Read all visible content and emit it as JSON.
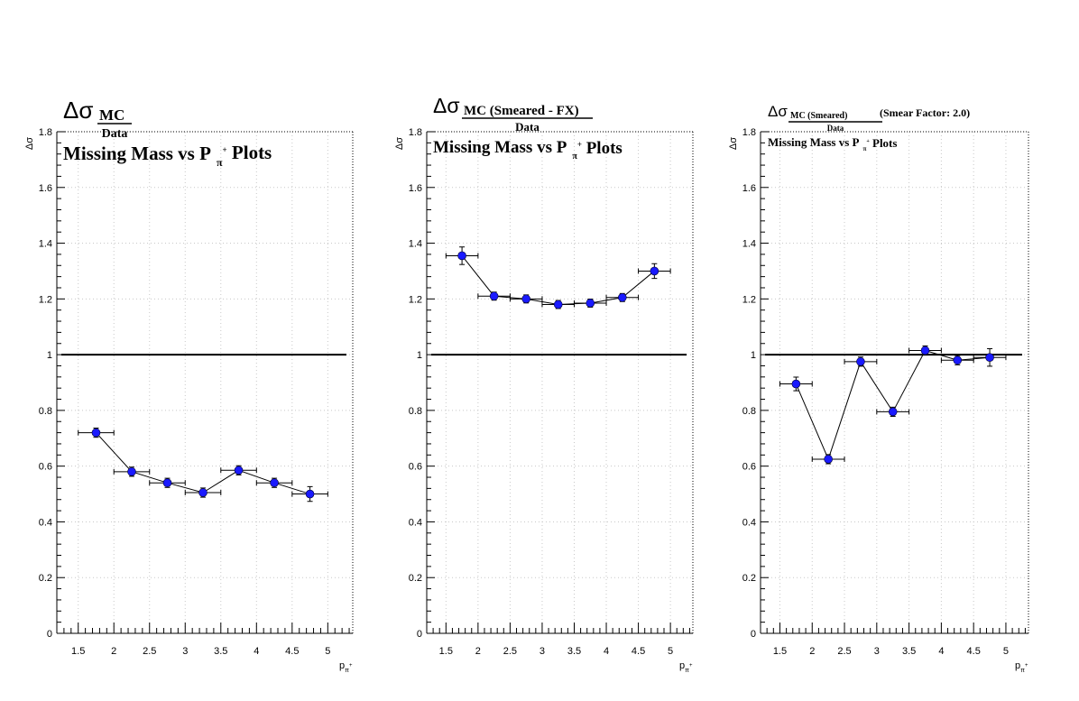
{
  "figure": {
    "colors": {
      "marker": "#1a1aff",
      "line": "#000000",
      "grid": "#c8c8c8",
      "axis": "#000000",
      "background": "#ffffff"
    }
  },
  "chart_data": [
    {
      "type": "scatter",
      "title": {
        "main": "Δσ",
        "numerator": "MC",
        "denominator": "Data",
        "line2_prefix": "Missing Mass vs P",
        "line2_sub": "π",
        "line2_sup": "+",
        "line2_suffix": "Plots"
      },
      "ylabel": "Δσ",
      "xlabel": "p",
      "xlabel_sub": "π",
      "xlabel_sup": "+",
      "xlim": [
        1.2,
        5.35
      ],
      "ylim": [
        0,
        1.8
      ],
      "x_ticks": [
        "1.5",
        "2",
        "2.5",
        "3",
        "3.5",
        "4",
        "4.5",
        "5"
      ],
      "y_ticks": [
        "0",
        "0.2",
        "0.4",
        "0.6",
        "0.8",
        "1",
        "1.2",
        "1.4",
        "1.6",
        "1.8"
      ],
      "grid": true,
      "reference_line": 1,
      "points": [
        {
          "x": 1.75,
          "y": 0.72,
          "xerr": 0.25,
          "yerr": 0.01
        },
        {
          "x": 2.25,
          "y": 0.58,
          "xerr": 0.25,
          "yerr": 0.01
        },
        {
          "x": 2.75,
          "y": 0.54,
          "xerr": 0.25,
          "yerr": 0.01
        },
        {
          "x": 3.25,
          "y": 0.505,
          "xerr": 0.25,
          "yerr": 0.01
        },
        {
          "x": 3.75,
          "y": 0.585,
          "xerr": 0.25,
          "yerr": 0.01
        },
        {
          "x": 4.25,
          "y": 0.54,
          "xerr": 0.25,
          "yerr": 0.01
        },
        {
          "x": 4.75,
          "y": 0.5,
          "xerr": 0.25,
          "yerr": 0.02
        }
      ]
    },
    {
      "type": "scatter",
      "title": {
        "main": "Δσ",
        "numerator": "MC (Smeared - FX)",
        "denominator": "Data",
        "line2_prefix": "Missing Mass vs P",
        "line2_sub": "π",
        "line2_sup": "+",
        "line2_suffix": "Plots"
      },
      "ylabel": "Δσ",
      "xlabel": "p",
      "xlabel_sub": "π",
      "xlabel_sup": "+",
      "xlim": [
        1.2,
        5.35
      ],
      "ylim": [
        0,
        1.8
      ],
      "x_ticks": [
        "1.5",
        "2",
        "2.5",
        "3",
        "3.5",
        "4",
        "4.5",
        "5"
      ],
      "y_ticks": [
        "0",
        "0.2",
        "0.4",
        "0.6",
        "0.8",
        "1",
        "1.2",
        "1.4",
        "1.6",
        "1.8"
      ],
      "grid": true,
      "reference_line": 1,
      "points": [
        {
          "x": 1.75,
          "y": 1.355,
          "xerr": 0.25,
          "yerr": 0.025
        },
        {
          "x": 2.25,
          "y": 1.21,
          "xerr": 0.25,
          "yerr": 0.008
        },
        {
          "x": 2.75,
          "y": 1.2,
          "xerr": 0.25,
          "yerr": 0.008
        },
        {
          "x": 3.25,
          "y": 1.18,
          "xerr": 0.25,
          "yerr": 0.008
        },
        {
          "x": 3.75,
          "y": 1.185,
          "xerr": 0.25,
          "yerr": 0.008
        },
        {
          "x": 4.25,
          "y": 1.205,
          "xerr": 0.25,
          "yerr": 0.008
        },
        {
          "x": 4.75,
          "y": 1.3,
          "xerr": 0.25,
          "yerr": 0.02
        }
      ]
    },
    {
      "type": "scatter",
      "title": {
        "main": "Δσ",
        "numerator": "MC (Smeared)",
        "denominator": "Data",
        "extra": "(Smear Factor: 2.0)",
        "line2_prefix": "Missing Mass vs P",
        "line2_sub": "π",
        "line2_sup": "+",
        "line2_suffix": "Plots"
      },
      "ylabel": "Δσ",
      "xlabel": "p",
      "xlabel_sub": "π",
      "xlabel_sup": "+",
      "xlim": [
        1.2,
        5.35
      ],
      "ylim": [
        0,
        1.8
      ],
      "x_ticks": [
        "1.5",
        "2",
        "2.5",
        "3",
        "3.5",
        "4",
        "4.5",
        "5"
      ],
      "y_ticks": [
        "0",
        "0.2",
        "0.4",
        "0.6",
        "0.8",
        "1",
        "1.2",
        "1.4",
        "1.6",
        "1.8"
      ],
      "grid": true,
      "reference_line": 1,
      "points": [
        {
          "x": 1.75,
          "y": 0.895,
          "xerr": 0.25,
          "yerr": 0.018
        },
        {
          "x": 2.25,
          "y": 0.625,
          "xerr": 0.25,
          "yerr": 0.01
        },
        {
          "x": 2.75,
          "y": 0.975,
          "xerr": 0.25,
          "yerr": 0.01
        },
        {
          "x": 3.25,
          "y": 0.795,
          "xerr": 0.25,
          "yerr": 0.01
        },
        {
          "x": 3.75,
          "y": 1.015,
          "xerr": 0.25,
          "yerr": 0.01
        },
        {
          "x": 4.25,
          "y": 0.98,
          "xerr": 0.25,
          "yerr": 0.01
        },
        {
          "x": 4.75,
          "y": 0.99,
          "xerr": 0.25,
          "yerr": 0.025
        }
      ]
    }
  ]
}
